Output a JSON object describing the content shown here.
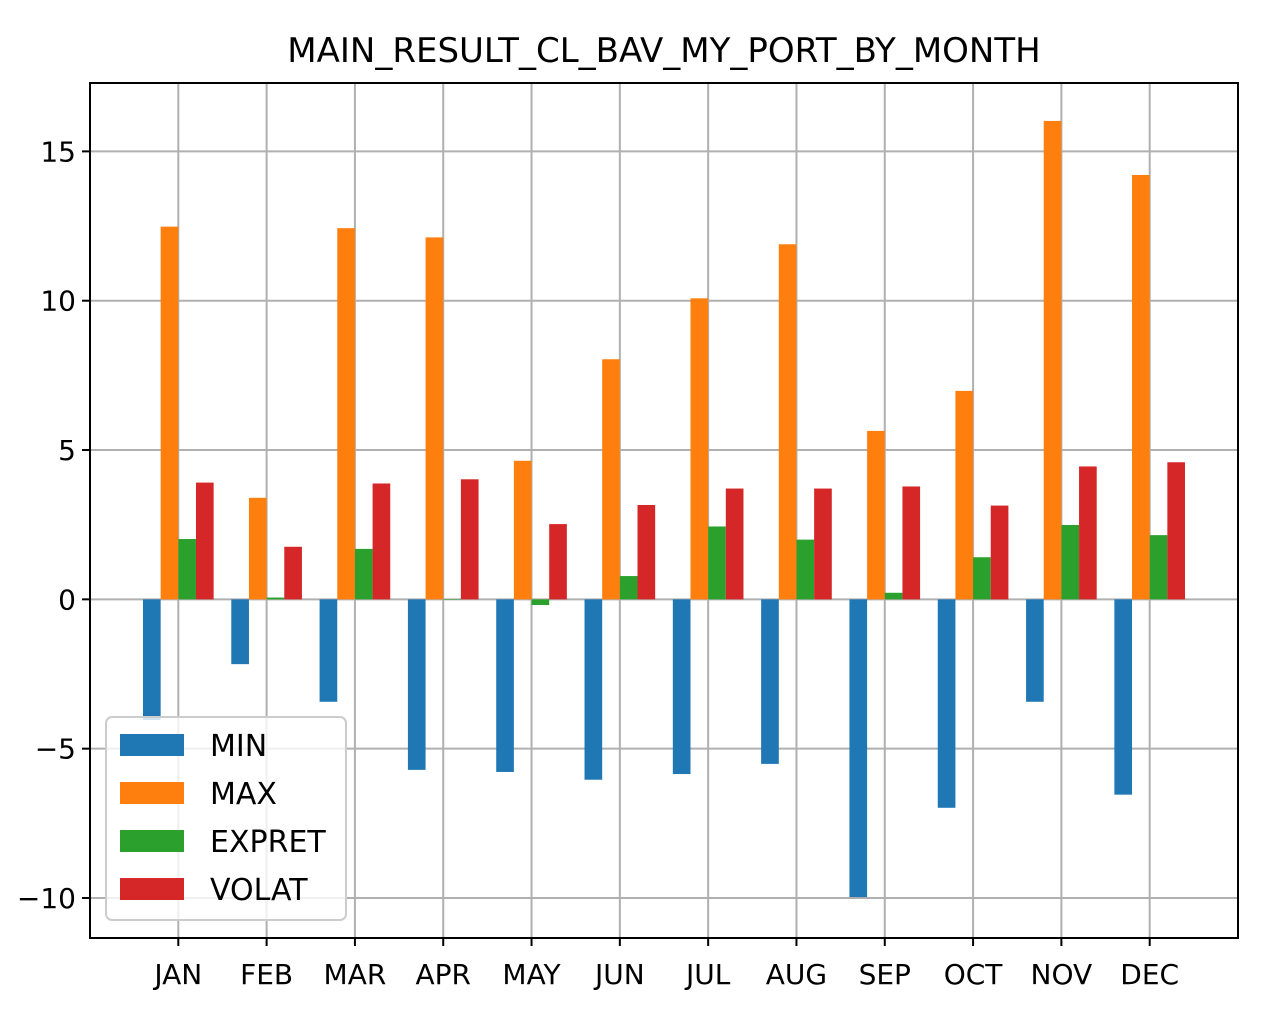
{
  "chart_data": {
    "type": "bar",
    "title": "MAIN_RESULT_CL_BAV_MY_PORT_BY_MONTH",
    "xlabel": "",
    "ylabel": "",
    "categories": [
      "JAN",
      "FEB",
      "MAR",
      "APR",
      "MAY",
      "JUN",
      "JUL",
      "AUG",
      "SEP",
      "OCT",
      "NOV",
      "DEC"
    ],
    "series": [
      {
        "name": "MIN",
        "color": "#1f77b4",
        "values": [
          -4.04,
          -2.17,
          -3.43,
          -5.71,
          -5.78,
          -6.04,
          -5.85,
          -5.51,
          -9.97,
          -6.98,
          -3.43,
          -6.54
        ]
      },
      {
        "name": "MAX",
        "color": "#ff7f0e",
        "values": [
          12.48,
          3.4,
          12.43,
          12.12,
          4.64,
          8.04,
          10.08,
          11.89,
          5.64,
          6.98,
          16.02,
          14.21
        ]
      },
      {
        "name": "EXPRET",
        "color": "#2ca02c",
        "values": [
          2.02,
          0.06,
          1.69,
          0.0,
          -0.19,
          0.78,
          2.44,
          2.0,
          0.22,
          1.41,
          2.49,
          2.15
        ]
      },
      {
        "name": "VOLAT",
        "color": "#d62728",
        "values": [
          3.91,
          1.76,
          3.88,
          4.02,
          2.52,
          3.16,
          3.71,
          3.71,
          3.78,
          3.14,
          4.45,
          4.59
        ]
      }
    ],
    "ylim": [
      -11.34,
      17.29
    ],
    "xlim": [
      -1,
      12
    ],
    "yticks": [
      -10,
      -5,
      0,
      5,
      10,
      15
    ],
    "ytick_labels": [
      "−10",
      "−5",
      "0",
      "5",
      "10",
      "15"
    ],
    "grid": true,
    "legend_position": "lower-left"
  }
}
